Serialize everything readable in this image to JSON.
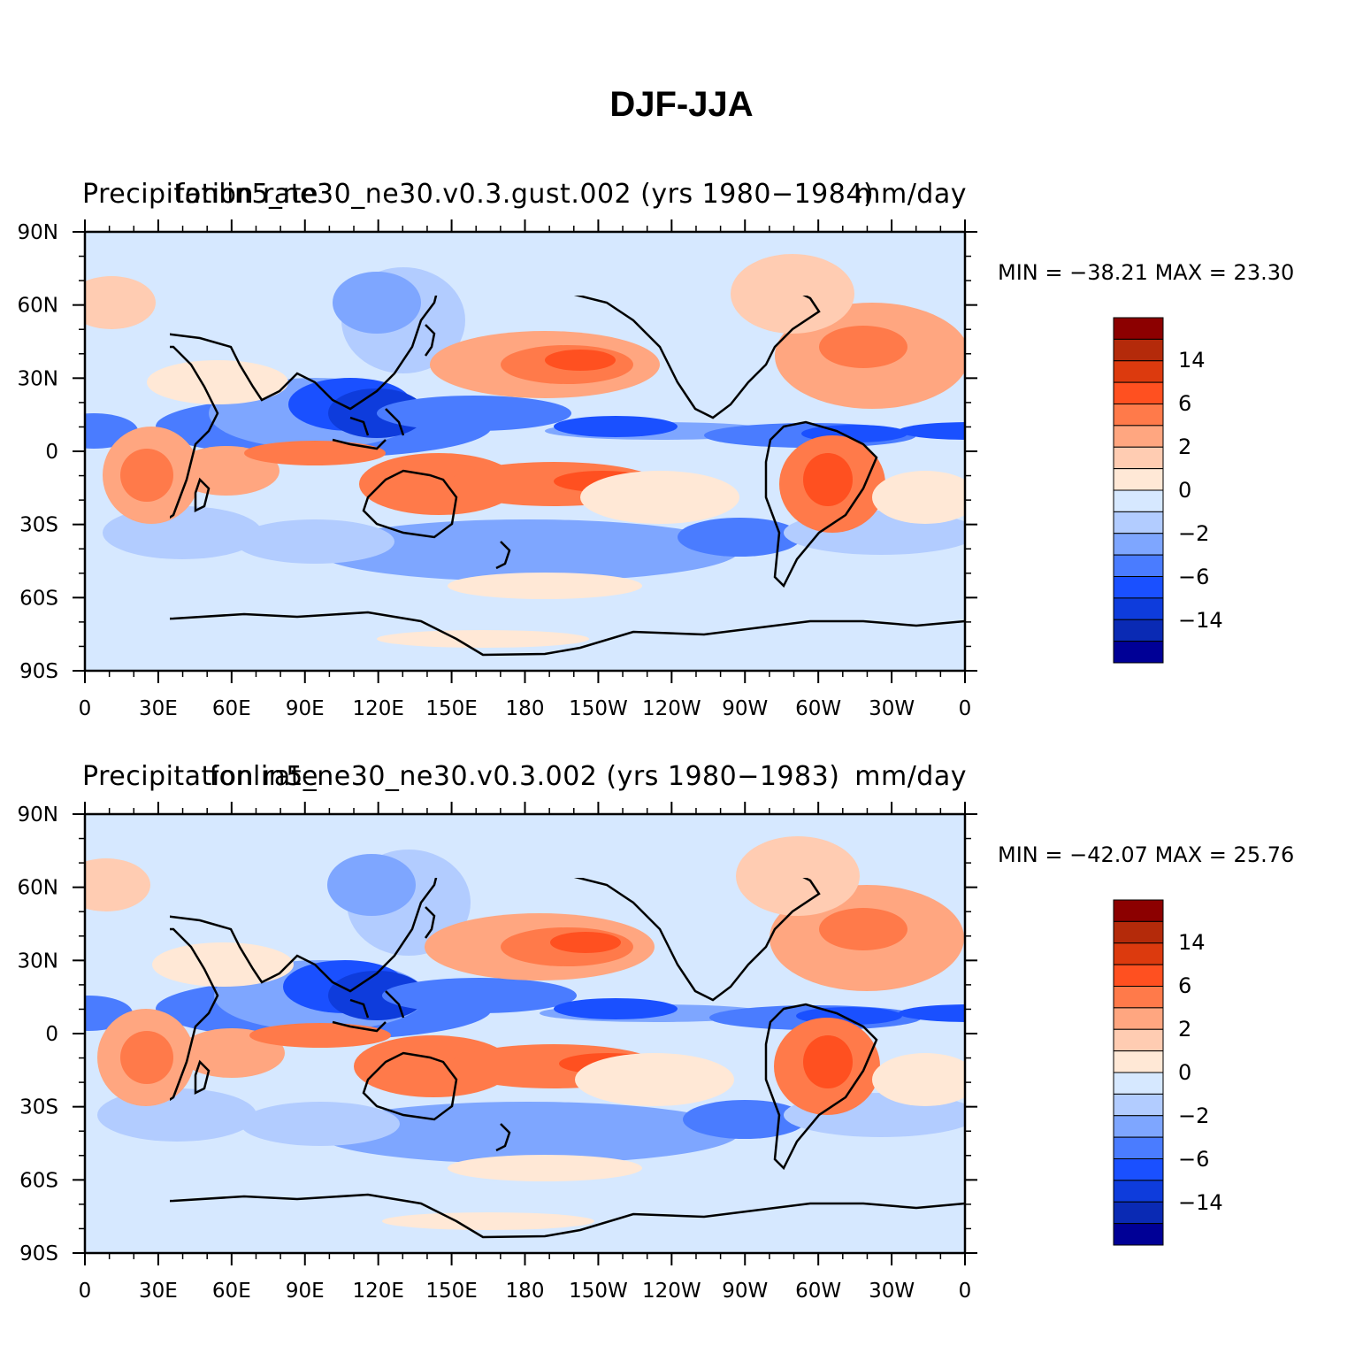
{
  "title": "DJF-JJA",
  "colors": {
    "levels": [
      "#000096",
      "#0a2ab4",
      "#0e3cdc",
      "#1a50ff",
      "#4a7cff",
      "#7ea6ff",
      "#b2ccff",
      "#d6e8ff",
      "#ffe8d6",
      "#ffccb2",
      "#ffa680",
      "#ff7a4a",
      "#ff5020",
      "#dc3a0e",
      "#b42a0a",
      "#8c0000"
    ]
  },
  "axes": {
    "lat_ticks": [
      "90N",
      "60N",
      "30N",
      "0",
      "30S",
      "60S",
      "90S"
    ],
    "lon_ticks": [
      "0",
      "30E",
      "60E",
      "90E",
      "120E",
      "150E",
      "180",
      "150W",
      "120W",
      "90W",
      "60W",
      "30W",
      "0"
    ]
  },
  "panels": [
    {
      "left_title": "Precipitation rate",
      "center_title": "fonlin5_ne30_ne30.v0.3.gust.002 (yrs 1980−1984)",
      "right_title": "mm/day",
      "min_label": "MIN =",
      "min_value": "−38.21",
      "max_label": "MAX =",
      "max_value": "23.30",
      "legend_labels": [
        "14",
        "6",
        "2",
        "0",
        "−2",
        "−6",
        "−14"
      ]
    },
    {
      "left_title": "Precipitation rate",
      "center_title": "fonlin5_ne30_ne30.v0.3.002 (yrs 1980−1983)",
      "right_title": "mm/day",
      "min_label": "MIN =",
      "min_value": "−42.07",
      "max_label": "MAX =",
      "max_value": "25.76",
      "legend_labels": [
        "14",
        "6",
        "2",
        "0",
        "−2",
        "−6",
        "−14"
      ]
    }
  ]
}
